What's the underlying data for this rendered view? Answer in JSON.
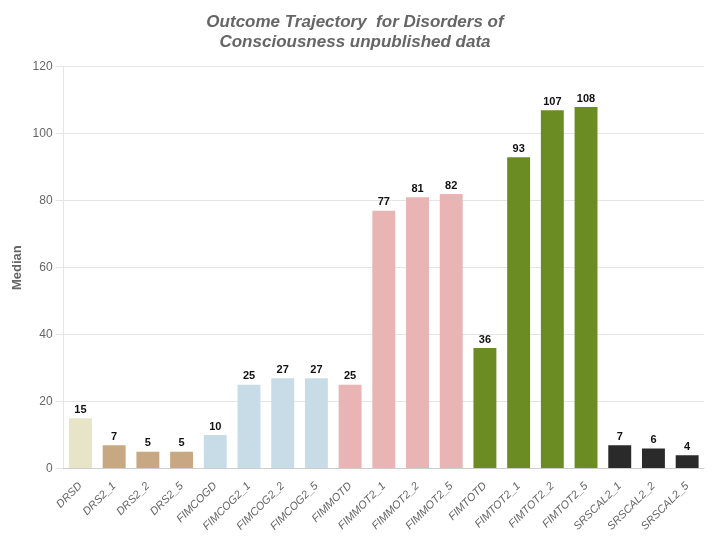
{
  "chart_data": {
    "type": "bar",
    "title": [
      "Outcome Trajectory  for Disorders of",
      "Consciousness unpublished data"
    ],
    "categories": [
      "DRSD",
      "DRS2_1",
      "DRS2_2",
      "DRS2_5",
      "FIMCOGD",
      "FIMCOG2_1",
      "FIMCOG2_2",
      "FIMCOG2_5",
      "FIMMOTD",
      "FIMMOT2_1",
      "FIMMOT2_2",
      "FIMMOT2_5",
      "FIMTOTD",
      "FIMTOT2_1",
      "FIMTOT2_2",
      "FIMTOT2_5",
      "SRSCAL2_1",
      "SRSCAL2_2",
      "SRSCAL2_5"
    ],
    "values": [
      15,
      7,
      5,
      5,
      10,
      25,
      27,
      27,
      25,
      77,
      81,
      82,
      36,
      93,
      107,
      108,
      7,
      6,
      4
    ],
    "colors": [
      "#e8e4c8",
      "#c8a882",
      "#c8a882",
      "#c8a882",
      "#c8dce8",
      "#c8dce8",
      "#c8dce8",
      "#c8dce8",
      "#e8b4b4",
      "#e8b4b4",
      "#e8b4b4",
      "#e8b4b4",
      "#6b8c23",
      "#6b8c23",
      "#6b8c23",
      "#6b8c23",
      "#2a2a2a",
      "#2a2a2a",
      "#2a2a2a"
    ],
    "ylabel": "Median",
    "ylim": [
      0,
      120
    ],
    "yticks": [
      0,
      20,
      40,
      60,
      80,
      100,
      120
    ],
    "grid": true,
    "data_labels": true
  }
}
